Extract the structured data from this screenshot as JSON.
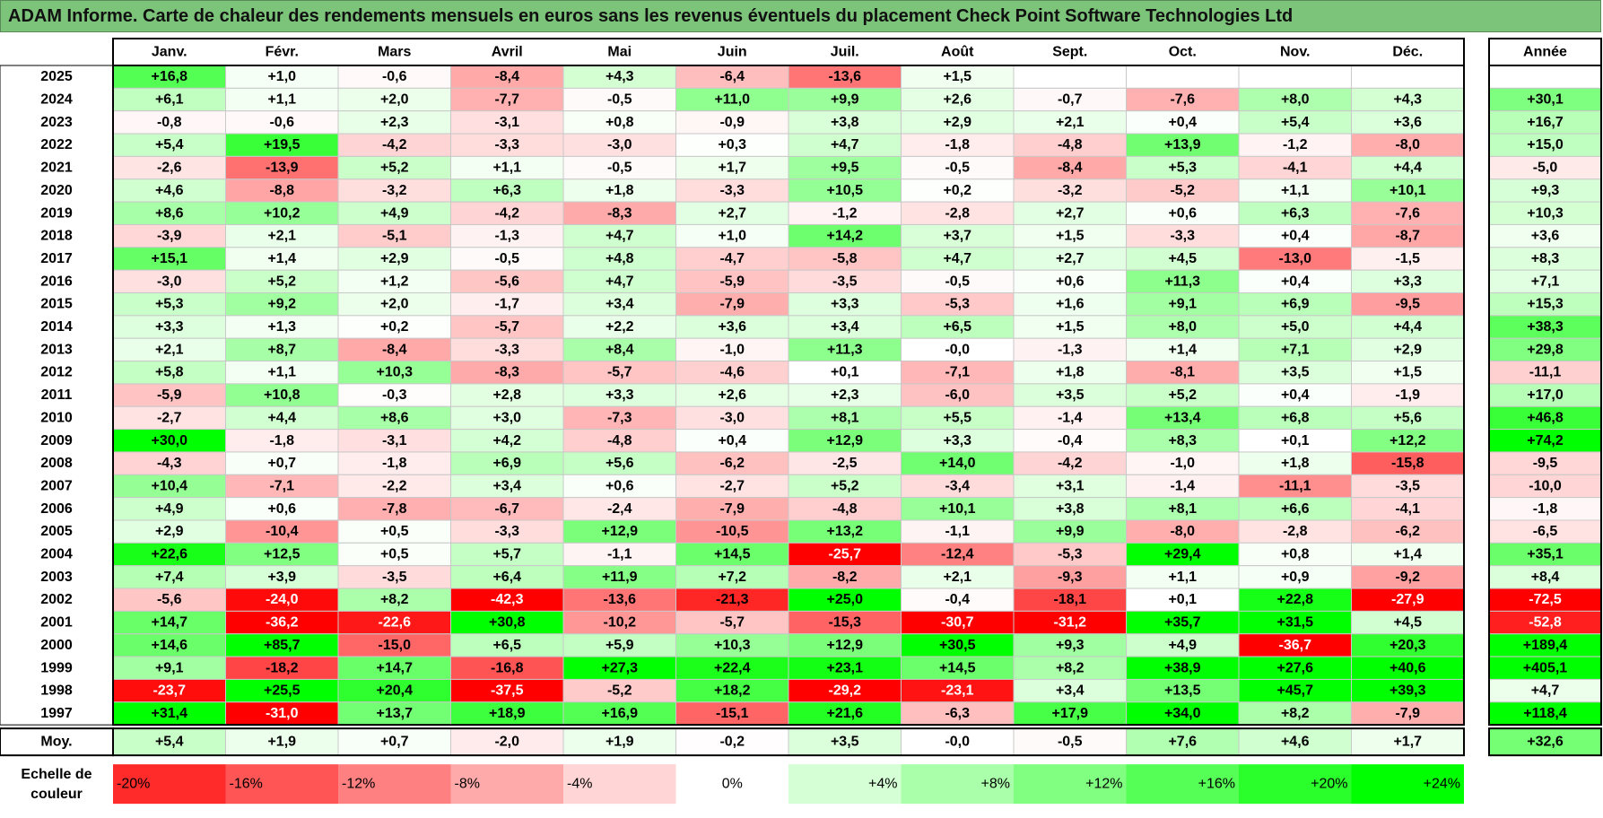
{
  "title": "ADAM Informe. Carte de chaleur des rendements mensuels en euros sans les revenus éventuels du placement Check Point Software Technologies Ltd",
  "chart_data": {
    "type": "heatmap",
    "columns": [
      "Janv.",
      "Févr.",
      "Mars",
      "Avril",
      "Mai",
      "Juin",
      "Juil.",
      "Août",
      "Sept.",
      "Oct.",
      "Nov.",
      "Déc."
    ],
    "year_column_label": "Année",
    "rows": [
      {
        "label": "2025",
        "values": [
          16.8,
          1.0,
          -0.6,
          -8.4,
          4.3,
          -6.4,
          -13.6,
          1.5,
          null,
          null,
          null,
          null
        ],
        "year": null
      },
      {
        "label": "2024",
        "values": [
          6.1,
          1.1,
          2.0,
          -7.7,
          -0.5,
          11.0,
          9.9,
          2.6,
          -0.7,
          -7.6,
          8.0,
          4.3
        ],
        "year": 30.1
      },
      {
        "label": "2023",
        "values": [
          -0.8,
          -0.6,
          2.3,
          -3.1,
          0.8,
          -0.9,
          3.8,
          2.9,
          2.1,
          0.4,
          5.4,
          3.6
        ],
        "year": 16.7
      },
      {
        "label": "2022",
        "values": [
          5.4,
          19.5,
          -4.2,
          -3.3,
          -3.0,
          0.3,
          4.7,
          -1.8,
          -4.8,
          13.9,
          -1.2,
          -8.0
        ],
        "year": 15.0
      },
      {
        "label": "2021",
        "values": [
          -2.6,
          -13.9,
          5.2,
          1.1,
          -0.5,
          1.7,
          9.5,
          -0.5,
          -8.4,
          5.3,
          -4.1,
          4.4
        ],
        "year": -5.0
      },
      {
        "label": "2020",
        "values": [
          4.6,
          -8.8,
          -3.2,
          6.3,
          1.8,
          -3.3,
          10.5,
          0.2,
          -3.2,
          -5.2,
          1.1,
          10.1
        ],
        "year": 9.3
      },
      {
        "label": "2019",
        "values": [
          8.6,
          10.2,
          4.9,
          -4.2,
          -8.3,
          2.7,
          -1.2,
          -2.8,
          2.7,
          0.6,
          6.3,
          -7.6
        ],
        "year": 10.3
      },
      {
        "label": "2018",
        "values": [
          -3.9,
          2.1,
          -5.1,
          -1.3,
          4.7,
          1.0,
          14.2,
          3.7,
          1.5,
          -3.3,
          0.4,
          -8.7
        ],
        "year": 3.6
      },
      {
        "label": "2017",
        "values": [
          15.1,
          1.4,
          2.9,
          -0.5,
          4.8,
          -4.7,
          -5.8,
          4.7,
          2.7,
          4.5,
          -13.0,
          -1.5
        ],
        "year": 8.3
      },
      {
        "label": "2016",
        "values": [
          -3.0,
          5.2,
          1.2,
          -5.6,
          4.7,
          -5.9,
          -3.5,
          -0.5,
          0.6,
          11.3,
          0.4,
          3.3
        ],
        "year": 7.1
      },
      {
        "label": "2015",
        "values": [
          5.3,
          9.2,
          2.0,
          -1.7,
          3.4,
          -7.9,
          3.3,
          -5.3,
          1.6,
          9.1,
          6.9,
          -9.5
        ],
        "year": 15.3
      },
      {
        "label": "2014",
        "values": [
          3.3,
          1.3,
          0.2,
          -5.7,
          2.2,
          3.6,
          3.4,
          6.5,
          1.5,
          8.0,
          5.0,
          4.4
        ],
        "year": 38.3
      },
      {
        "label": "2013",
        "values": [
          2.1,
          8.7,
          -8.4,
          -3.3,
          8.4,
          -1.0,
          11.3,
          "-0,0",
          -1.3,
          1.4,
          7.1,
          2.9
        ],
        "year": 29.8
      },
      {
        "label": "2012",
        "values": [
          5.8,
          1.1,
          10.3,
          -8.3,
          -5.7,
          -4.6,
          0.1,
          -7.1,
          1.8,
          -8.1,
          3.5,
          1.5
        ],
        "year": -11.1
      },
      {
        "label": "2011",
        "values": [
          -5.9,
          10.8,
          -0.3,
          2.8,
          3.3,
          2.6,
          2.3,
          -6.0,
          3.5,
          5.2,
          0.4,
          -1.9
        ],
        "year": 17.0
      },
      {
        "label": "2010",
        "values": [
          -2.7,
          4.4,
          8.6,
          3.0,
          -7.3,
          -3.0,
          8.1,
          5.5,
          -1.4,
          13.4,
          6.8,
          5.6
        ],
        "year": 46.8
      },
      {
        "label": "2009",
        "values": [
          30.0,
          -1.8,
          -3.1,
          4.2,
          -4.8,
          0.4,
          12.9,
          3.3,
          -0.4,
          8.3,
          0.1,
          12.2
        ],
        "year": 74.2
      },
      {
        "label": "2008",
        "values": [
          -4.3,
          0.7,
          -1.8,
          6.9,
          5.6,
          -6.2,
          -2.5,
          14.0,
          -4.2,
          -1.0,
          1.8,
          -15.8
        ],
        "year": -9.5
      },
      {
        "label": "2007",
        "values": [
          10.4,
          -7.1,
          -2.2,
          3.4,
          0.6,
          -2.7,
          5.2,
          -3.4,
          3.1,
          -1.4,
          -11.1,
          -3.5
        ],
        "year": -10.0
      },
      {
        "label": "2006",
        "values": [
          4.9,
          0.6,
          -7.8,
          -6.7,
          -2.4,
          -7.9,
          -4.8,
          10.1,
          3.8,
          8.1,
          6.6,
          -4.1
        ],
        "year": -1.8
      },
      {
        "label": "2005",
        "values": [
          2.9,
          -10.4,
          0.5,
          -3.3,
          12.9,
          -10.5,
          13.2,
          -1.1,
          9.9,
          -8.0,
          -2.8,
          -6.2
        ],
        "year": -6.5
      },
      {
        "label": "2004",
        "values": [
          22.6,
          12.5,
          0.5,
          5.7,
          -1.1,
          14.5,
          -25.7,
          -12.4,
          -5.3,
          29.4,
          0.8,
          1.4
        ],
        "year": 35.1
      },
      {
        "label": "2003",
        "values": [
          7.4,
          3.9,
          -3.5,
          6.4,
          11.9,
          7.2,
          -8.2,
          2.1,
          -9.3,
          1.1,
          0.9,
          -9.2
        ],
        "year": 8.4
      },
      {
        "label": "2002",
        "values": [
          -5.6,
          -24.0,
          8.2,
          -42.3,
          -13.6,
          -21.3,
          25.0,
          -0.4,
          -18.1,
          0.1,
          22.8,
          -27.9
        ],
        "year": -72.5
      },
      {
        "label": "2001",
        "values": [
          14.7,
          -36.2,
          -22.6,
          30.8,
          -10.2,
          -5.7,
          -15.3,
          -30.7,
          -31.2,
          35.7,
          31.5,
          4.5
        ],
        "year": -52.8
      },
      {
        "label": "2000",
        "values": [
          14.6,
          85.7,
          -15.0,
          6.5,
          5.9,
          10.3,
          12.9,
          30.5,
          9.3,
          4.9,
          -36.7,
          20.3
        ],
        "year": 189.4
      },
      {
        "label": "1999",
        "values": [
          9.1,
          -18.2,
          14.7,
          -16.8,
          27.3,
          22.4,
          23.1,
          14.5,
          8.2,
          38.9,
          27.6,
          40.6
        ],
        "year": 405.1
      },
      {
        "label": "1998",
        "values": [
          -23.7,
          25.5,
          20.4,
          -37.5,
          -5.2,
          18.2,
          -29.2,
          -23.1,
          3.4,
          13.5,
          45.7,
          39.3
        ],
        "year": 4.7
      },
      {
        "label": "1997",
        "values": [
          31.4,
          -31.0,
          13.7,
          18.9,
          16.9,
          -15.1,
          21.6,
          -6.3,
          17.9,
          34.0,
          8.2,
          -7.9
        ],
        "year": 118.4
      }
    ],
    "average": {
      "label": "Moy.",
      "values": [
        5.4,
        1.9,
        0.7,
        -2.0,
        1.9,
        -0.2,
        3.5,
        "-0,0",
        -0.5,
        7.6,
        4.6,
        1.7
      ],
      "year": 32.6
    },
    "scale": {
      "title_lines": [
        "Echelle de",
        "couleur"
      ],
      "stops": [
        "-20%",
        "-16%",
        "-12%",
        "-8%",
        "-4%",
        "0%",
        "+4%",
        "+8%",
        "+12%",
        "+16%",
        "+20%",
        "+24%"
      ]
    },
    "colors": {
      "negative_max": "#ff0000",
      "neutral": "#ffffff",
      "positive_max": "#00ff00",
      "title_bar": "#7cc47a"
    },
    "grid": true
  }
}
